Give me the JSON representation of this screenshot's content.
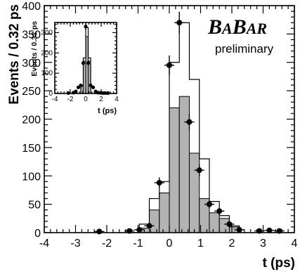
{
  "chart_data": [
    {
      "type": "histogram",
      "xlabel": "t (ps)",
      "ylabel": "Events / 0.32 ps",
      "xlim": [
        -4,
        4
      ],
      "ylim": [
        0,
        400
      ],
      "x_ticks": [
        -4,
        -3,
        -2,
        -1,
        0,
        1,
        2,
        3,
        4
      ],
      "y_ticks": [
        0,
        50,
        100,
        150,
        200,
        250,
        300,
        350,
        400
      ],
      "bins": [
        -1.28,
        -0.96,
        -0.64,
        -0.32,
        0.0,
        0.32,
        0.64,
        0.96,
        1.28,
        1.6,
        1.92,
        2.24
      ],
      "series": [
        {
          "style": "filled-grey-histogram",
          "values": [
            0,
            8,
            40,
            70,
            220,
            240,
            140,
            60,
            35,
            25,
            10
          ]
        },
        {
          "style": "open-outline-histogram",
          "values": [
            0,
            15,
            60,
            90,
            300,
            370,
            270,
            130,
            55,
            30,
            12
          ]
        },
        {
          "style": "data-points",
          "x": [
            -2.24,
            -1.28,
            -0.96,
            -0.64,
            -0.32,
            0.0,
            0.32,
            0.64,
            0.96,
            1.28,
            1.6,
            1.92,
            2.24,
            2.88,
            3.2,
            3.52
          ],
          "y": [
            2,
            3,
            5,
            12,
            88,
            295,
            370,
            195,
            110,
            50,
            38,
            15,
            5,
            3,
            4,
            3
          ]
        }
      ]
    },
    {
      "type": "histogram",
      "xlabel": "t (ps)",
      "ylabel": "Events / 0.32 ps",
      "xlim": [
        -4,
        4
      ],
      "ylim": [
        0,
        350
      ],
      "x_ticks": [
        -4,
        -2,
        0,
        2,
        4
      ],
      "y_ticks": [
        0,
        100,
        200,
        300
      ],
      "bins": [
        -0.64,
        -0.32,
        0.0,
        0.32,
        0.64
      ],
      "series": [
        {
          "style": "filled-grey-histogram",
          "values": [
            35,
            160,
            280,
            160
          ]
        },
        {
          "style": "open-outline-histogram",
          "values": [
            40,
            175,
            325,
            175
          ]
        },
        {
          "style": "data-points",
          "x": [
            -2.24,
            -1.6,
            -1.28,
            -0.96,
            -0.64,
            -0.32,
            0.0,
            0.32,
            0.64,
            0.96,
            1.28,
            1.6,
            1.92,
            2.24,
            2.56,
            2.88
          ],
          "y": [
            2,
            4,
            10,
            30,
            40,
            150,
            330,
            150,
            40,
            30,
            10,
            4,
            3,
            2,
            2,
            2
          ]
        }
      ]
    }
  ],
  "logo": {
    "text": "BABAR",
    "subtitle": "preliminary"
  }
}
